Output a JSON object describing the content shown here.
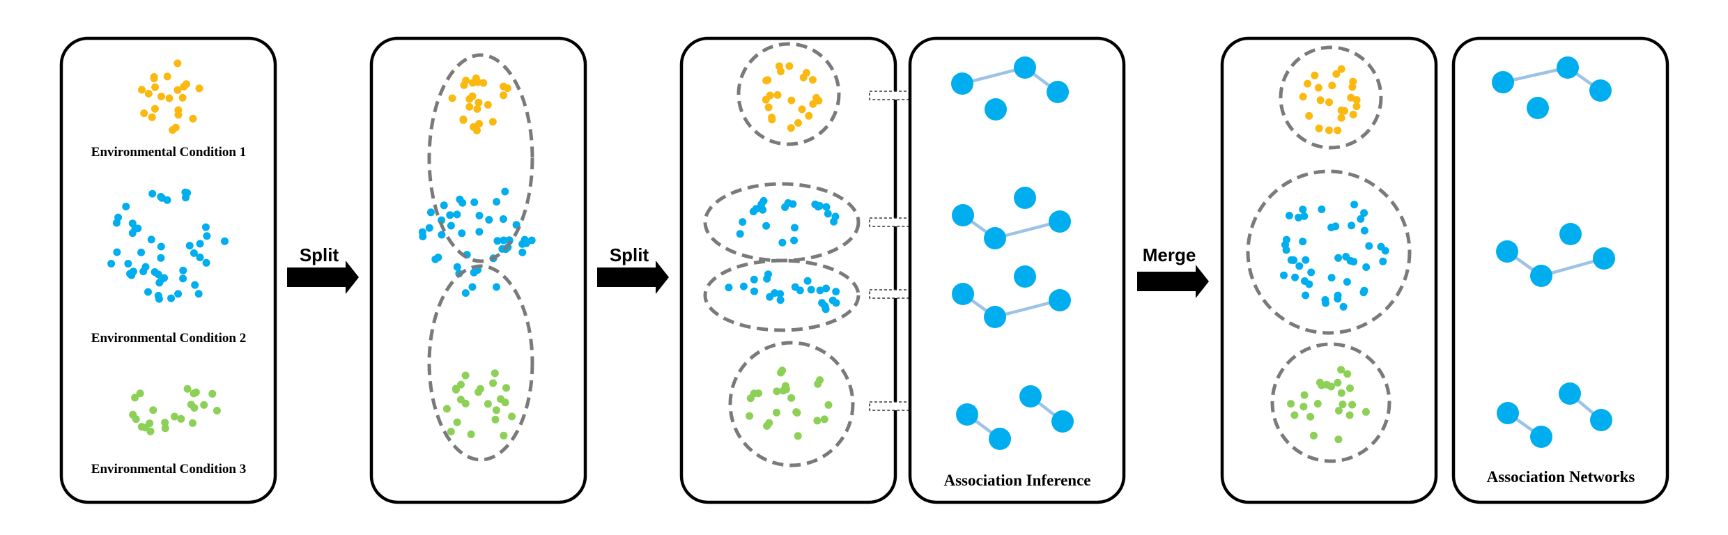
{
  "labels": {
    "condition_1": "Environmental Condition 1",
    "condition_2": "Environmental Condition 2",
    "condition_3": "Environmental Condition 3",
    "association_inference": "Association Inference",
    "association_networks": "Association Networks"
  },
  "steps": {
    "split_1": "Split",
    "split_2": "Split",
    "merge": "Merge"
  },
  "colors": {
    "condition_1": "#fbb80f",
    "condition_2": "#00aeef",
    "condition_3": "#8cd056",
    "cluster_outline": "#7a7a7a",
    "network_node": "#00aeef",
    "network_edge": "#9cc3e4",
    "arrow": "#000000"
  }
}
